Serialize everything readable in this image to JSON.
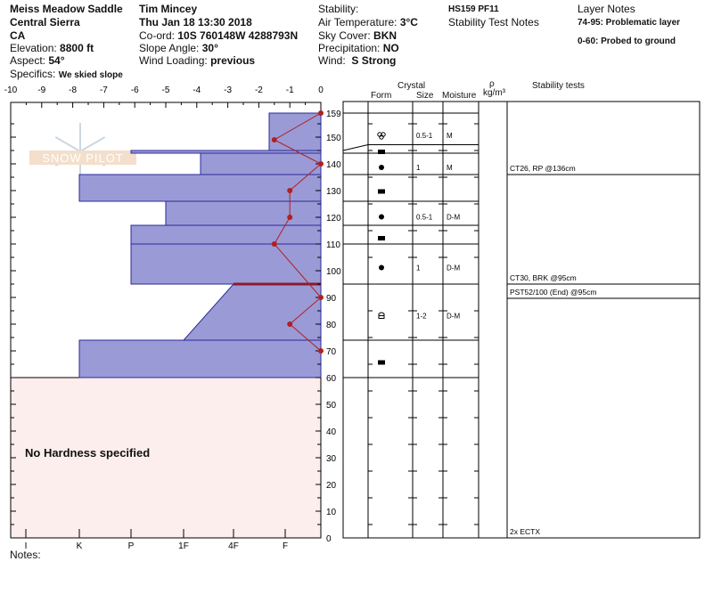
{
  "header": {
    "location": "Meiss Meadow Saddle",
    "range": "Central Sierra",
    "state": "CA",
    "elevation_label": "Elevation:",
    "elevation": "8800 ft",
    "aspect_label": "Aspect:",
    "aspect": "54°",
    "specifics_label": "Specifics:",
    "specifics": "We skied slope",
    "observer": "Tim Mincey",
    "datetime": "Thu Jan 18 13:30 2018",
    "coord_label": "Co-ord:",
    "coord": "10S 760148W 4288793N",
    "slope_label": "Slope Angle:",
    "slope": "30°",
    "wind_loading_label": "Wind Loading:",
    "wind_loading": "previous",
    "stability_label": "Stability:",
    "air_temp_label": "Air Temperature:",
    "air_temp": "3°C",
    "sky_label": "Sky Cover:",
    "sky": "BKN",
    "precip_label": "Precipitation:",
    "precip": "NO",
    "wind_label": "Wind:",
    "wind": "S Strong",
    "hs_pf": "HS159 PF11",
    "stability_test_notes": "Stability Test Notes",
    "layer_notes_title": "Layer Notes",
    "layer_notes": [
      "74-95: Problematic layer",
      "0-60: Probed to ground"
    ]
  },
  "logo_text": "SNOW PILOT",
  "no_hardness": "No Hardness specified",
  "notes_label": "Notes:",
  "table": {
    "headers": {
      "crystal": "Crystal",
      "form": "Form",
      "size": "Size",
      "moisture": "Moisture",
      "rho": "ρ",
      "density_unit": "kg/m³",
      "stability": "Stability tests"
    },
    "layers": [
      {
        "top": 159,
        "bottom": 145,
        "form": "mf-cluster",
        "size": "0.5-1",
        "moisture": "M"
      },
      {
        "top": 145,
        "bottom": 144,
        "form": "rect",
        "size": "",
        "moisture": ""
      },
      {
        "top": 144,
        "bottom": 136,
        "form": "dot",
        "size": "1",
        "moisture": "M"
      },
      {
        "top": 136,
        "bottom": 126,
        "form": "rect",
        "size": "",
        "moisture": ""
      },
      {
        "top": 126,
        "bottom": 117,
        "form": "dot",
        "size": "0.5-1",
        "moisture": "D-M"
      },
      {
        "top": 117,
        "bottom": 110,
        "form": "rect",
        "size": "",
        "moisture": ""
      },
      {
        "top": 110,
        "bottom": 95,
        "form": "dot",
        "size": "1",
        "moisture": "D-M"
      },
      {
        "top": 95,
        "bottom": 74,
        "form": "facet-round",
        "size": "1-2",
        "moisture": "D-M"
      },
      {
        "top": 74,
        "bottom": 60,
        "form": "rect",
        "size": "",
        "moisture": ""
      }
    ],
    "stability_tests": [
      {
        "text": "CT26, RP @136cm",
        "height": 136
      },
      {
        "text": "CT30, BRK @95cm",
        "height": 95
      },
      {
        "text": "PST52/100 (End) @95cm",
        "height": 95
      },
      {
        "text": "2x ECTX",
        "height": 0
      }
    ]
  },
  "chart_data": {
    "type": "snow-profile",
    "temperature_axis": {
      "range": [
        -10,
        0
      ],
      "ticks": [
        "-10",
        "-9",
        "-8",
        "-7",
        "-6",
        "-5",
        "-4",
        "-3",
        "-2",
        "-1",
        "0"
      ]
    },
    "height_axis": {
      "range": [
        0,
        159
      ],
      "ticks": [
        "159",
        "150",
        "140",
        "130",
        "120",
        "110",
        "100",
        "90",
        "80",
        "70",
        "60",
        "50",
        "40",
        "30",
        "20",
        "10",
        "0"
      ]
    },
    "hardness_axis": {
      "ticks": [
        "I",
        "K",
        "P",
        "1F",
        "4F",
        "F"
      ]
    },
    "hardness_layers": [
      {
        "top": 159,
        "bottom": 145,
        "hardness": "F+"
      },
      {
        "top": 145,
        "bottom": 144,
        "hardness": "P"
      },
      {
        "top": 144,
        "bottom": 136,
        "hardness": "1F+"
      },
      {
        "top": 136,
        "bottom": 126,
        "hardness": "K"
      },
      {
        "top": 126,
        "bottom": 117,
        "hardness": "1F-"
      },
      {
        "top": 117,
        "bottom": 110,
        "hardness": "P"
      },
      {
        "top": 110,
        "bottom": 95,
        "hardness": "P"
      },
      {
        "top": 95,
        "bottom": 74,
        "hardness": "4F",
        "hardness_bottom": "1F"
      },
      {
        "top": 74,
        "bottom": 60,
        "hardness": "K"
      }
    ],
    "temperature_profile": [
      [
        159,
        0
      ],
      [
        149,
        -1.5
      ],
      [
        140,
        0
      ],
      [
        130,
        -1
      ],
      [
        120,
        -1
      ],
      [
        110,
        -1.5
      ],
      [
        90,
        0
      ],
      [
        80,
        -1
      ],
      [
        70,
        0
      ]
    ],
    "problem_layer": 95,
    "colors": {
      "hardness_fill": "#9a9ad6",
      "hardness_line": "#2a2a9a",
      "temp": "#b02020",
      "no_hardness_fill": "#fdeeee"
    }
  }
}
